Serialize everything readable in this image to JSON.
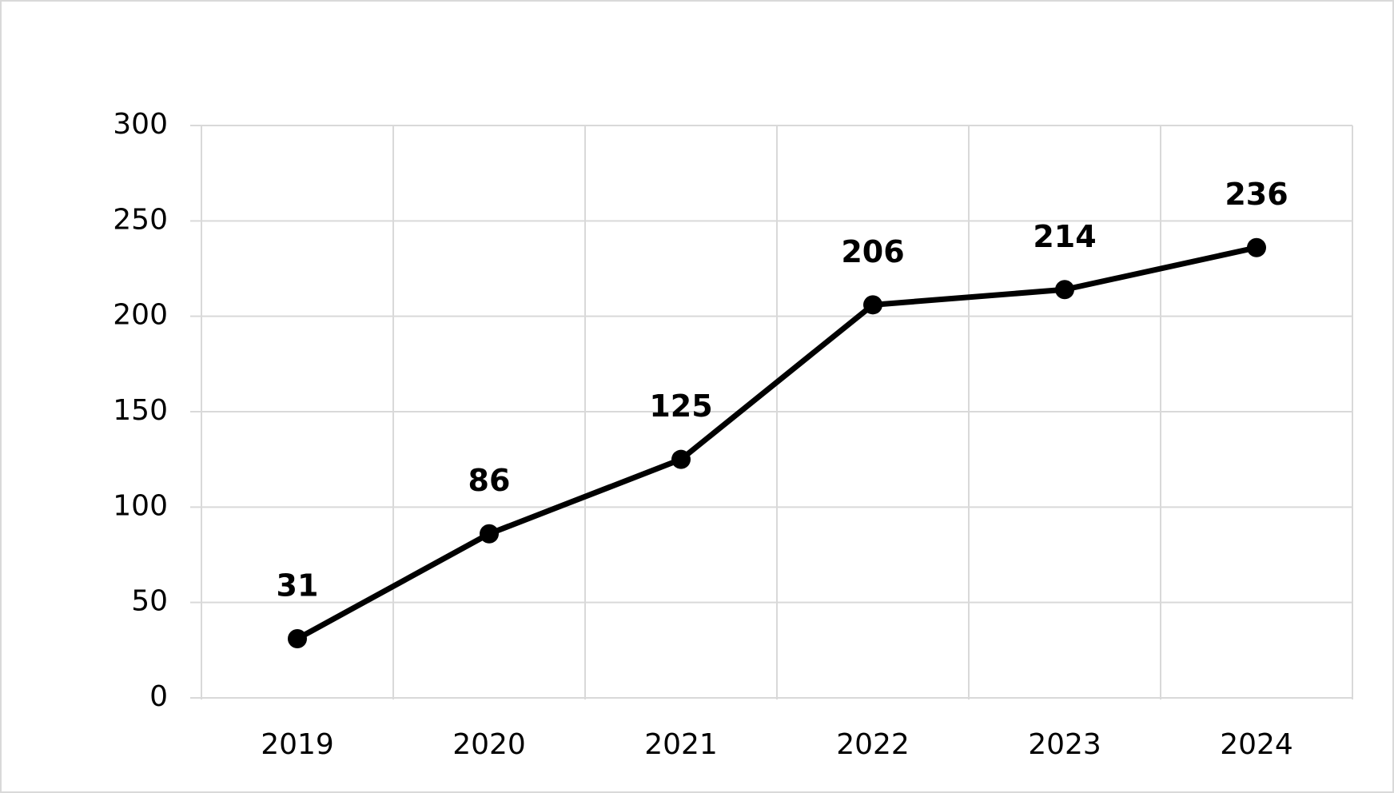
{
  "chart_data": {
    "type": "line",
    "categories": [
      "2019",
      "2020",
      "2021",
      "2022",
      "2023",
      "2024"
    ],
    "values": [
      31,
      86,
      125,
      206,
      214,
      236
    ],
    "color": "#000000",
    "ylim": [
      0,
      300
    ],
    "yticks": [
      0,
      50,
      100,
      150,
      200,
      250,
      300
    ],
    "grid": true
  }
}
